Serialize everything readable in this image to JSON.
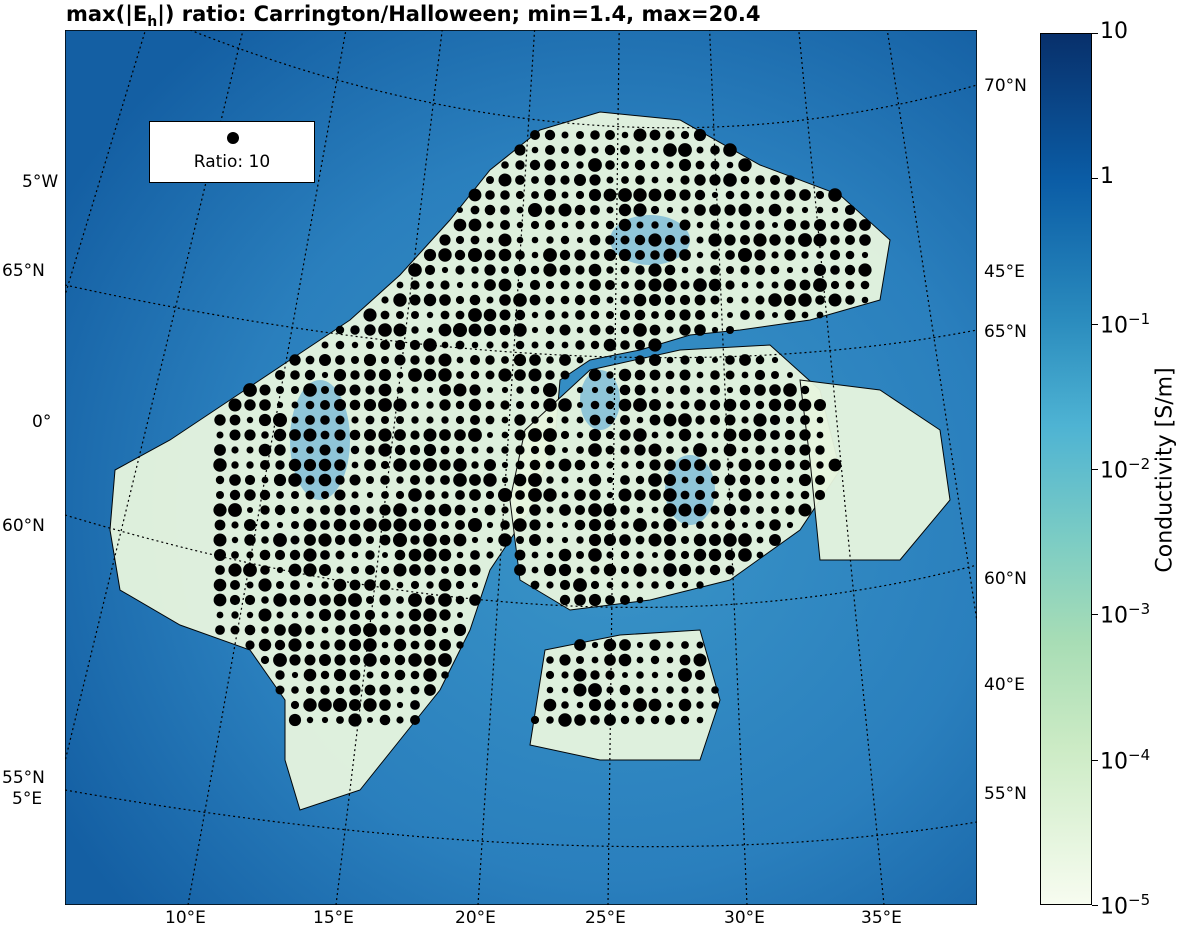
{
  "title": "max(|E_h|) ratio: Carrington/Halloween; min=1.4, max=20.4",
  "title_parts": {
    "pre": "max(|E",
    "sub": "h",
    "post": "|) ratio: Carrington/Halloween; min=1.4, max=20.4"
  },
  "legend": {
    "label": "Ratio: 10",
    "marker_color": "#000000"
  },
  "left_labels": [
    "5°W",
    "65°N",
    "0°",
    "60°N",
    "55°N",
    "5°E"
  ],
  "right_labels": [
    "70°N",
    "45°E",
    "65°N",
    "60°N",
    "40°E",
    "55°N"
  ],
  "bottom_labels": [
    "10°E",
    "15°E",
    "20°E",
    "25°E",
    "30°E",
    "35°E"
  ],
  "colorbar": {
    "label": "Conductivity [S/m]",
    "scale": "log",
    "range": [
      1e-05,
      10
    ],
    "ticks": [
      {
        "base": "10",
        "exp": ""
      },
      {
        "base": "1",
        "exp": ""
      },
      {
        "base": "10",
        "exp": "−1"
      },
      {
        "base": "10",
        "exp": "−2"
      },
      {
        "base": "10",
        "exp": "−3"
      },
      {
        "base": "10",
        "exp": "−4"
      },
      {
        "base": "10",
        "exp": "−5"
      }
    ],
    "colormap": "GnBu",
    "colors": {
      "high": "#08306b",
      "low": "#f7fcf0"
    }
  },
  "colors": {
    "sea": "#1f6fb2",
    "land_low": "#eef8e6",
    "dots": "#000000"
  }
}
